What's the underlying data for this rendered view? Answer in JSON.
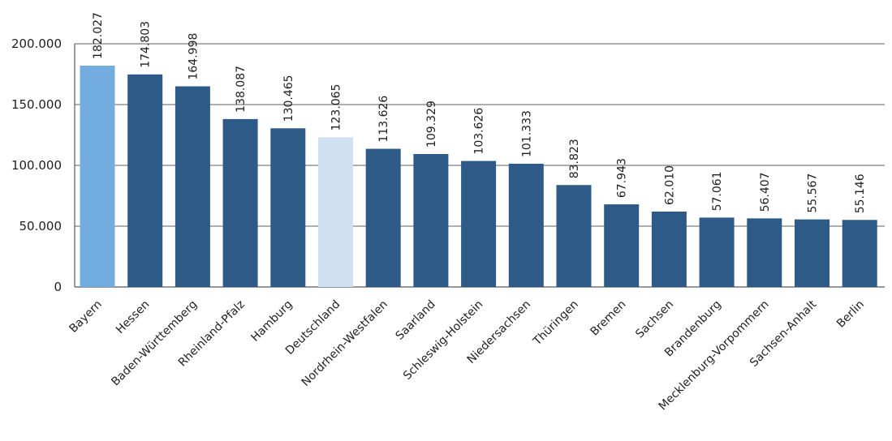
{
  "chart_data": {
    "type": "bar",
    "categories": [
      "Bayern",
      "Hessen",
      "Baden-Württemberg",
      "Rheinland-Pfalz",
      "Hamburg",
      "Deutschland",
      "Nordrhein-Westfalen",
      "Saarland",
      "Schleswig-Holstein",
      "Niedersachsen",
      "Thüringen",
      "Bremen",
      "Sachsen",
      "Brandenburg",
      "Mecklenburg-Vorpommern",
      "Sachsen-Anhalt",
      "Berlin"
    ],
    "values": [
      182027,
      174803,
      164998,
      138087,
      130465,
      123065,
      113626,
      109329,
      103626,
      101333,
      83823,
      67943,
      62010,
      57061,
      56407,
      55567,
      55146
    ],
    "value_labels": [
      "182.027",
      "174.803",
      "164.998",
      "138.087",
      "130.465",
      "123.065",
      "113.626",
      "109.329",
      "103.626",
      "101.333",
      "83.823",
      "67.943",
      "62.010",
      "57.061",
      "56.407",
      "55.567",
      "55.146"
    ],
    "y_ticks": [
      0,
      50000,
      100000,
      150000,
      200000
    ],
    "y_tick_labels": [
      "0",
      "50.000",
      "100.000",
      "150.000",
      "200.000"
    ],
    "ylim": [
      0,
      200000
    ],
    "grid": true,
    "legend": "none",
    "title": "",
    "xlabel": "",
    "ylabel": "",
    "colors": {
      "default": "#2e5a87",
      "Bayern": "#73acdf",
      "Deutschland": "#cfe0f3"
    }
  }
}
